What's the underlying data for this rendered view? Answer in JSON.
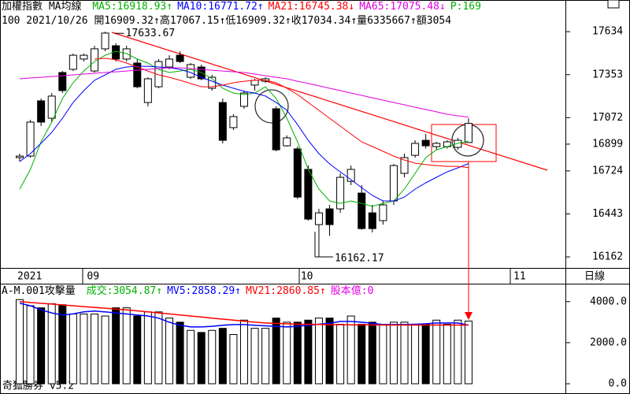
{
  "chart_data": [
    {
      "type": "candlestick",
      "title": "加權指數 MA均線",
      "info_line": "100 2021/10/26 開16909.32↑高17067.15↑低16909.32↑收17034.34↑量6335667↑額3054",
      "extra_indicator": {
        "text": "P:169",
        "color": "#00b000"
      },
      "categories": [
        "2021",
        null,
        null,
        null,
        null,
        null,
        "09",
        null,
        null,
        null,
        null,
        null,
        null,
        null,
        null,
        null,
        null,
        null,
        null,
        null,
        null,
        null,
        null,
        null,
        null,
        null,
        "10",
        null,
        null,
        null,
        null,
        null,
        null,
        null,
        null,
        null,
        null,
        null,
        null,
        null,
        null,
        null,
        null
      ],
      "next_month_label": "11",
      "range_label": "日線",
      "ohlc": [
        [
          16811,
          16837,
          16785,
          16821
        ],
        [
          16821,
          17058,
          16811,
          17043
        ],
        [
          17182,
          17197,
          17017,
          17043
        ],
        [
          17068,
          17233,
          17043,
          17213
        ],
        [
          17367,
          17377,
          17233,
          17249
        ],
        [
          17388,
          17491,
          17377,
          17480
        ],
        [
          17455,
          17491,
          17439,
          17480
        ],
        [
          17377,
          17542,
          17367,
          17522
        ],
        [
          17522,
          17633.67,
          17506,
          17625
        ],
        [
          17542,
          17558,
          17439,
          17455
        ],
        [
          17455,
          17542,
          17439,
          17522
        ],
        [
          17429,
          17455,
          17264,
          17274
        ],
        [
          17171,
          17336,
          17146,
          17326
        ],
        [
          17274,
          17455,
          17264,
          17439
        ],
        [
          17403,
          17480,
          17388,
          17455
        ],
        [
          17480,
          17506,
          17429,
          17439
        ],
        [
          17336,
          17429,
          17326,
          17419
        ],
        [
          17403,
          17419,
          17316,
          17326
        ],
        [
          17264,
          17352,
          17249,
          17336
        ],
        [
          17171,
          17197,
          16904,
          16924
        ],
        [
          17007,
          17094,
          16991,
          17079
        ],
        [
          17146,
          17249,
          17130,
          17233
        ],
        [
          17285,
          17326,
          17249,
          17316
        ],
        [
          17310,
          17336,
          17300,
          17326
        ],
        [
          17130,
          17146,
          16852,
          16862
        ],
        [
          16888,
          16956,
          16883,
          16940
        ],
        [
          16868,
          16883,
          16540,
          16553
        ],
        [
          16734,
          16759,
          16399,
          16409
        ],
        [
          16373,
          16476,
          16162.17,
          16450
        ],
        [
          16476,
          16502,
          16300,
          16373
        ],
        [
          16476,
          16708,
          16450,
          16682
        ],
        [
          16656,
          16759,
          16631,
          16734
        ],
        [
          16579,
          16631,
          16340,
          16347
        ],
        [
          16450,
          16502,
          16322,
          16347
        ],
        [
          16399,
          16528,
          16373,
          16502
        ],
        [
          16528,
          16770,
          16502,
          16759
        ],
        [
          16708,
          16837,
          16682,
          16811
        ],
        [
          16826,
          16924,
          16811,
          16904
        ],
        [
          16924,
          16965,
          16870,
          16888
        ],
        [
          16883,
          16914,
          16862,
          16904
        ],
        [
          16883,
          16924,
          16870,
          16914
        ],
        [
          16878,
          16940,
          16862,
          16924
        ],
        [
          16909.32,
          17067.15,
          16909.32,
          17034.34
        ]
      ],
      "up_fill": "#ffffff",
      "down_fill": "#000000",
      "series": [
        {
          "name": "MA5:16918.93↑",
          "color": "#00b000",
          "values": [
            16605,
            16734,
            16914,
            17043,
            17197,
            17300,
            17377,
            17439,
            17480,
            17506,
            17491,
            17455,
            17429,
            17388,
            17367,
            17377,
            17388,
            17367,
            17326,
            17264,
            17233,
            17223,
            17233,
            17274,
            17197,
            17068,
            16914,
            16734,
            16605,
            16528,
            16512,
            16528,
            16512,
            16492,
            16512,
            16528,
            16605,
            16708,
            16811,
            16862,
            16883,
            16904,
            16918.93
          ]
        },
        {
          "name": "MA10:16771.72↑",
          "color": "#0000ff",
          "values": [
            16785,
            16837,
            16904,
            16976,
            17068,
            17171,
            17249,
            17316,
            17352,
            17388,
            17403,
            17408,
            17408,
            17403,
            17398,
            17388,
            17367,
            17336,
            17310,
            17285,
            17264,
            17244,
            17233,
            17213,
            17171,
            17120,
            17027,
            16924,
            16837,
            16770,
            16718,
            16667,
            16615,
            16564,
            16528,
            16528,
            16553,
            16605,
            16646,
            16682,
            16718,
            16744,
            16771.72
          ]
        },
        {
          "name": "MA21:16745.38↓",
          "color": "#ff0000",
          "values": [
            null,
            null,
            null,
            null,
            null,
            null,
            null,
            17455,
            17460,
            17450,
            17429,
            17403,
            17377,
            17352,
            17336,
            17316,
            17295,
            17274,
            17274,
            17285,
            17300,
            17310,
            17316,
            17316,
            17300,
            17264,
            17223,
            17171,
            17120,
            17068,
            17017,
            16965,
            16914,
            16883,
            16852,
            16821,
            16795,
            16775,
            16765,
            16759,
            16754,
            16754,
            16745.38
          ]
        },
        {
          "name": "MA65:17075.48↓",
          "color": "#e000e0",
          "values": [
            17326,
            17331,
            17336,
            17341,
            17346,
            17352,
            17357,
            17362,
            17367,
            17372,
            17377,
            17382,
            17388,
            17393,
            17398,
            17398,
            17393,
            17388,
            17382,
            17377,
            17372,
            17367,
            17357,
            17346,
            17336,
            17326,
            17310,
            17295,
            17280,
            17264,
            17249,
            17233,
            17218,
            17202,
            17187,
            17171,
            17156,
            17140,
            17125,
            17110,
            17094,
            17084,
            17075.48
          ]
        }
      ],
      "annotations": [
        {
          "value": 17633.67,
          "index": 8
        },
        {
          "value": 16162.17,
          "index": 28
        }
      ],
      "ylim": [
        16090,
        17738
      ],
      "yticks": [
        16162,
        16443,
        16724,
        16899,
        17072,
        17353,
        17634
      ]
    },
    {
      "type": "bar",
      "title": "A-M.001攻擊量",
      "extra_indicator": {
        "text": "股本億:0",
        "color": "#e000e0"
      },
      "footer": "奇狐勝券 v5.2",
      "series": [
        {
          "name": "成交:3054.87↑",
          "color": "#00b000",
          "values": [
            4100,
            3800,
            3700,
            3900,
            3850,
            3400,
            3400,
            3400,
            3300,
            3700,
            3700,
            3300,
            3500,
            3500,
            3200,
            3000,
            2600,
            2500,
            2600,
            2700,
            2400,
            3100,
            2700,
            2700,
            3200,
            3000,
            3000,
            3100,
            3200,
            3200,
            2900,
            3300,
            2900,
            3000,
            2900,
            3000,
            3000,
            2900,
            2900,
            3100,
            2900,
            3100,
            3054.87
          ]
        },
        {
          "name": "MV5:2858.29↑",
          "color": "#0000ff",
          "values": [
            3923,
            3800,
            3600,
            3450,
            3346,
            3400,
            3500,
            3538,
            3500,
            3450,
            3400,
            3346,
            3300,
            3200,
            3000,
            2850,
            2769,
            2769,
            2800,
            2850,
            2885,
            2885,
            2850,
            2820,
            2800,
            2769,
            2800,
            2850,
            2900,
            2950,
            3038,
            3038,
            3000,
            2950,
            2885,
            2885,
            2885,
            2900,
            2920,
            2962,
            2962,
            2962,
            2858.29
          ]
        },
        {
          "name": "MV21:2860.85↑",
          "color": "#ff0000",
          "values": [
            4000,
            3960,
            3920,
            3880,
            3840,
            3800,
            3760,
            3720,
            3680,
            3640,
            3600,
            3550,
            3500,
            3450,
            3400,
            3350,
            3300,
            3250,
            3200,
            3150,
            3100,
            3050,
            3000,
            2960,
            2940,
            2920,
            2900,
            2900,
            2890,
            2880,
            2880,
            2870,
            2870,
            2870,
            2860,
            2860,
            2860,
            2860,
            2860,
            2860,
            2860,
            2860,
            2860.85
          ]
        }
      ],
      "ylim": [
        0,
        4300
      ],
      "yticks": [
        {
          "value": 0,
          "label": "0.0"
        },
        {
          "value": 2000,
          "label": "2000.0"
        },
        {
          "value": 4000,
          "label": "4000.0"
        }
      ]
    }
  ]
}
